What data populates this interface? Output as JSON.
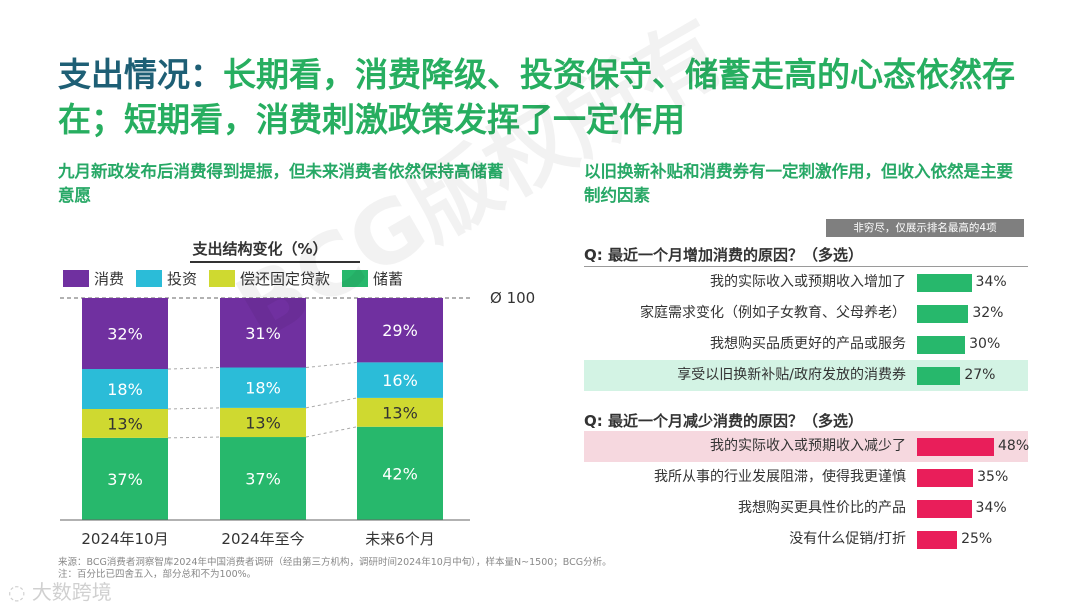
{
  "title": {
    "prefix": "支出情况：",
    "main": "长期看，消费降级、投资保守、储蓄走高的心态依然存在；短期看，消费刺激政策发挥了一定作用"
  },
  "left": {
    "subtitle": "九月新政发布后消费得到提振，但未来消费者依然保持高储蓄意愿"
  },
  "right": {
    "subtitle": "以旧换新补贴和消费券有一定刺激作用，但收入依然是主要制约因素",
    "note": "非穷尽，仅展示排名最高的4项"
  },
  "colors": {
    "purple": "#7030a0",
    "cyan": "#2bbcd8",
    "yellow": "#cfd930",
    "green": "#27b86c",
    "bar_green": "#27b86c",
    "bar_red": "#e91e5a",
    "title_blue": "#1e5f75",
    "title_green": "#27ae60"
  },
  "chart_data": [
    {
      "type": "bar",
      "stacked": true,
      "title": "支出结构变化（%）",
      "categories": [
        "2024年10月",
        "2024年至今",
        "未来6个月"
      ],
      "series": [
        {
          "name": "储蓄",
          "values": [
            37,
            37,
            42
          ],
          "labels": [
            "37%",
            "37%",
            "42%"
          ],
          "color": "#27b86c"
        },
        {
          "name": "偿还固定贷款",
          "values": [
            13,
            13,
            13
          ],
          "labels": [
            "13%",
            "13%",
            "13%"
          ],
          "color": "#cfd930"
        },
        {
          "name": "投资",
          "values": [
            18,
            18,
            16
          ],
          "labels": [
            "18%",
            "18%",
            "16%"
          ],
          "color": "#2bbcd8"
        },
        {
          "name": "消费",
          "values": [
            32,
            31,
            29
          ],
          "labels": [
            "32%",
            "31%",
            "29%"
          ],
          "color": "#7030a0"
        }
      ],
      "legend_order": [
        "消费",
        "投资",
        "偿还固定贷款",
        "储蓄"
      ],
      "total_label": "Ø 100",
      "ylim": [
        0,
        100
      ]
    },
    {
      "type": "bar",
      "orientation": "horizontal",
      "title": "Q: 最近一个月增加消费的原因？（多选）",
      "categories": [
        "我的实际收入或预期收入增加了",
        "家庭需求变化（例如子女教育、父母养老）",
        "我想购买品质更好的产品或服务",
        "享受以旧换新补贴/政府发放的消费券"
      ],
      "values": [
        34,
        32,
        30,
        27
      ],
      "labels": [
        "34%",
        "32%",
        "30%",
        "27%"
      ],
      "highlight_index": 3,
      "color": "#27b86c"
    },
    {
      "type": "bar",
      "orientation": "horizontal",
      "title": "Q: 最近一个月减少消费的原因？（多选）",
      "categories": [
        "我的实际收入或预期收入减少了",
        "我所从事的行业发展阻滞，使得我更谨慎",
        "我想购买更具性价比的产品",
        "没有什么促销/打折"
      ],
      "values": [
        48,
        35,
        34,
        25
      ],
      "labels": [
        "48%",
        "35%",
        "34%",
        "25%"
      ],
      "highlight_index": 0,
      "color": "#e91e5a"
    }
  ],
  "footnotes": {
    "source": "来源：BCG消费者洞察智库2024年中国消费者调研（经由第三方机构，调研时间2024年10月中旬），样本量N~1500；BCG分析。",
    "note": "注：百分比已四舍五入，部分总和不为100%。"
  },
  "watermark": "BCG版权所有",
  "logo": "大数跨境"
}
